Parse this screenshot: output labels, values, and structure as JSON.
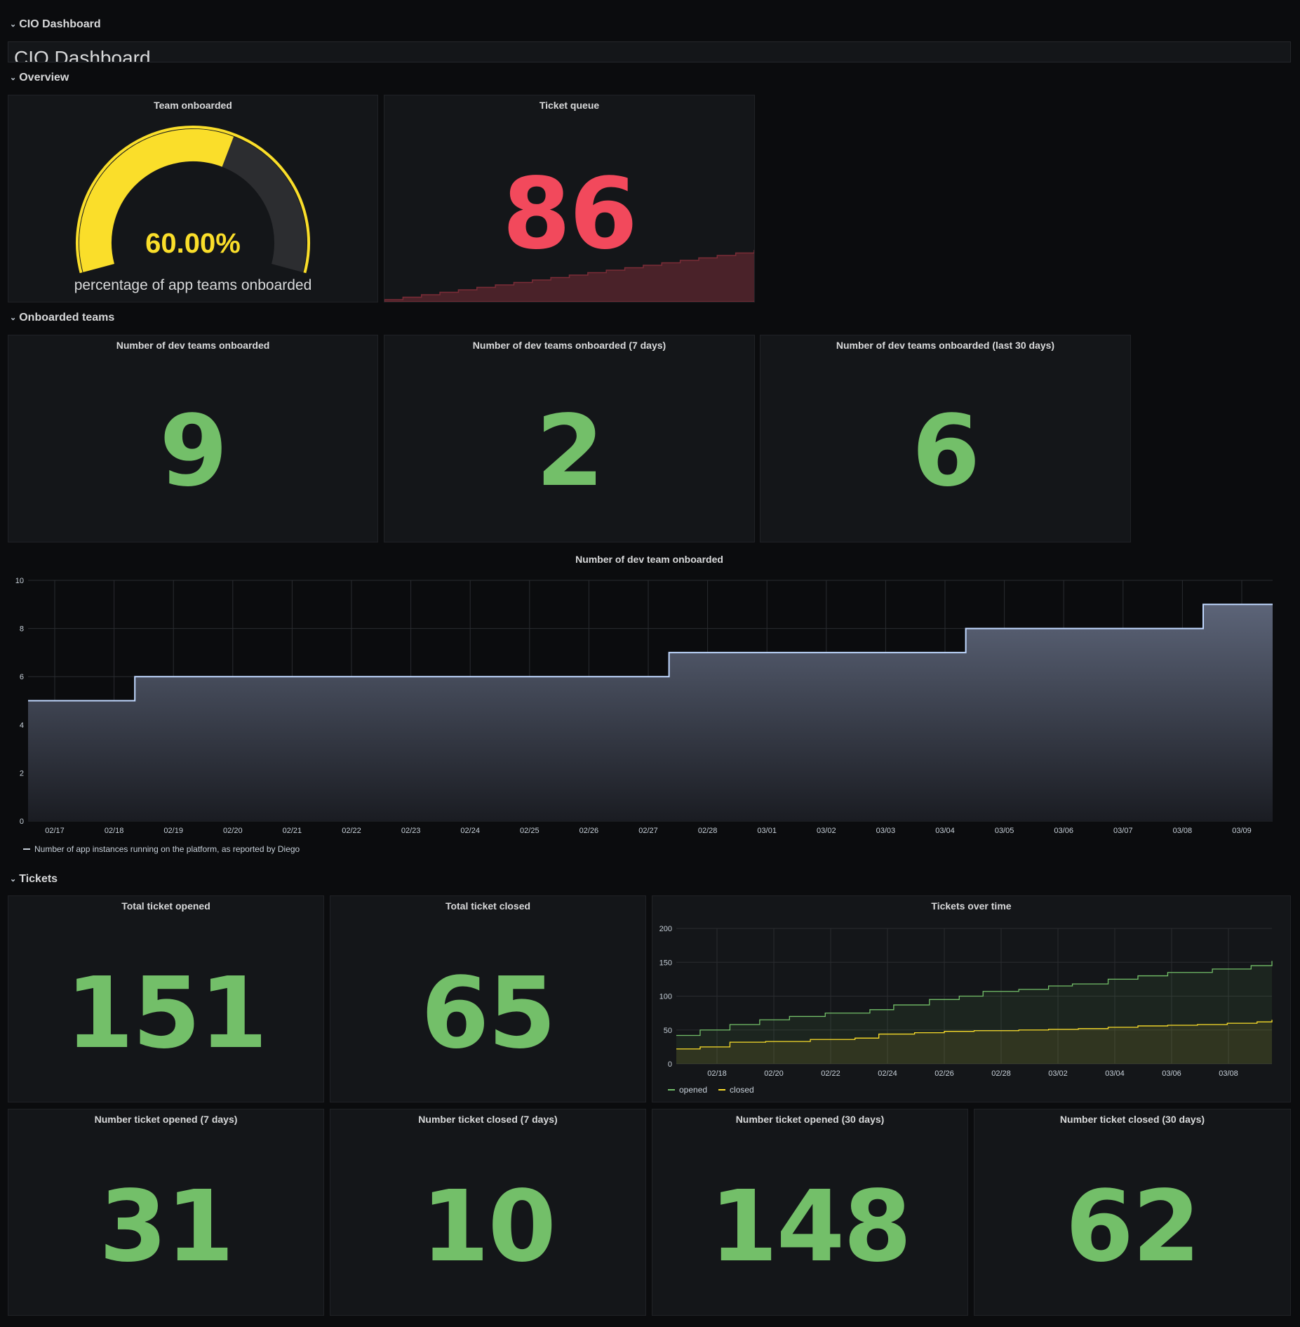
{
  "rows": {
    "cio": "CIO Dashboard",
    "overview": "Overview",
    "onboarded": "Onboarded teams",
    "tickets": "Tickets"
  },
  "text_panel": {
    "heading": "CIO Dashboard"
  },
  "panels": {
    "team_onboarded": {
      "title": "Team onboarded",
      "value": "60.00%",
      "fraction": 0.6,
      "subtitle": "percentage of app teams onboarded",
      "color": "#fade2a"
    },
    "ticket_queue": {
      "title": "Ticket queue",
      "value": "86",
      "color": "#f2495c"
    },
    "dev_teams": {
      "title": "Number of dev teams onboarded",
      "value": "9"
    },
    "dev_teams_7": {
      "title": "Number of dev teams onboarded (7 days)",
      "value": "2"
    },
    "dev_teams_30": {
      "title": "Number of dev teams onboarded (last 30 days)",
      "value": "6"
    },
    "total_opened": {
      "title": "Total ticket opened",
      "value": "151"
    },
    "total_closed": {
      "title": "Total ticket closed",
      "value": "65"
    },
    "opened_7": {
      "title": "Number ticket opened (7 days)",
      "value": "31"
    },
    "closed_7": {
      "title": "Number ticket closed (7 days)",
      "value": "10"
    },
    "opened_30": {
      "title": "Number ticket opened (30 days)",
      "value": "148"
    },
    "closed_30": {
      "title": "Number ticket closed (30 days)",
      "value": "62"
    },
    "tickets_over_time": {
      "title": "Tickets over time"
    },
    "dev_team_graph": {
      "title": "Number of dev team onboarded"
    }
  },
  "colors": {
    "green": "#73bf69",
    "red": "#f2495c",
    "yellow": "#fade2a",
    "graph_line": "#c0d8ff"
  },
  "chart_data": [
    {
      "type": "area",
      "title": "Number of dev team onboarded",
      "x": [
        "02/17",
        "02/18",
        "02/19",
        "02/20",
        "02/21",
        "02/22",
        "02/23",
        "02/24",
        "02/25",
        "02/26",
        "02/27",
        "02/28",
        "03/01",
        "03/02",
        "03/03",
        "03/04",
        "03/05",
        "03/06",
        "03/07",
        "03/08",
        "03/09"
      ],
      "step_points": [
        [
          -0.45,
          5
        ],
        [
          1.35,
          5
        ],
        [
          1.35,
          6
        ],
        [
          10.35,
          6
        ],
        [
          10.35,
          7
        ],
        [
          15.35,
          7
        ],
        [
          15.35,
          8
        ],
        [
          19.35,
          8
        ],
        [
          19.35,
          9
        ],
        [
          20.55,
          9
        ]
      ],
      "series": [
        {
          "name": "Number of app instances running on the platform, as reported by Diego"
        }
      ],
      "ylim": [
        0,
        10
      ],
      "yticks": [
        0,
        2,
        4,
        6,
        8,
        10
      ],
      "grid": true,
      "legend": "bottom-left"
    },
    {
      "type": "line",
      "title": "Tickets over time",
      "x": [
        "02/18",
        "02/20",
        "02/22",
        "02/24",
        "02/26",
        "02/28",
        "03/02",
        "03/04",
        "03/06",
        "03/08"
      ],
      "xlim": [
        "02/17",
        "03/09"
      ],
      "ylim": [
        0,
        200
      ],
      "yticks": [
        0,
        50,
        100,
        150,
        200
      ],
      "series": [
        {
          "name": "opened",
          "color": "#73bf69",
          "steps": [
            [
              0,
              42
            ],
            [
              0.8,
              50
            ],
            [
              1.8,
              58
            ],
            [
              2.8,
              65
            ],
            [
              3.8,
              70
            ],
            [
              5,
              75
            ],
            [
              6.5,
              80
            ],
            [
              7.3,
              87
            ],
            [
              8.5,
              95
            ],
            [
              9.5,
              100
            ],
            [
              10.3,
              107
            ],
            [
              11.5,
              110
            ],
            [
              12.5,
              115
            ],
            [
              13.3,
              118
            ],
            [
              14.5,
              125
            ],
            [
              15.5,
              130
            ],
            [
              16.5,
              135
            ],
            [
              18,
              140
            ],
            [
              19.3,
              145
            ],
            [
              20,
              152
            ]
          ]
        },
        {
          "name": "closed",
          "color": "#fade2a",
          "steps": [
            [
              0,
              22
            ],
            [
              0.8,
              25
            ],
            [
              1.8,
              32
            ],
            [
              3,
              33
            ],
            [
              4.5,
              36
            ],
            [
              6,
              38
            ],
            [
              6.8,
              44
            ],
            [
              8,
              46
            ],
            [
              9,
              48
            ],
            [
              10,
              49
            ],
            [
              11.5,
              50
            ],
            [
              12.5,
              51
            ],
            [
              13.5,
              52
            ],
            [
              14.5,
              54
            ],
            [
              15.5,
              56
            ],
            [
              16.5,
              57
            ],
            [
              17.5,
              58
            ],
            [
              18.5,
              60
            ],
            [
              19.5,
              62
            ],
            [
              20,
              65
            ]
          ]
        }
      ],
      "grid": true,
      "legend": "bottom-left"
    }
  ]
}
